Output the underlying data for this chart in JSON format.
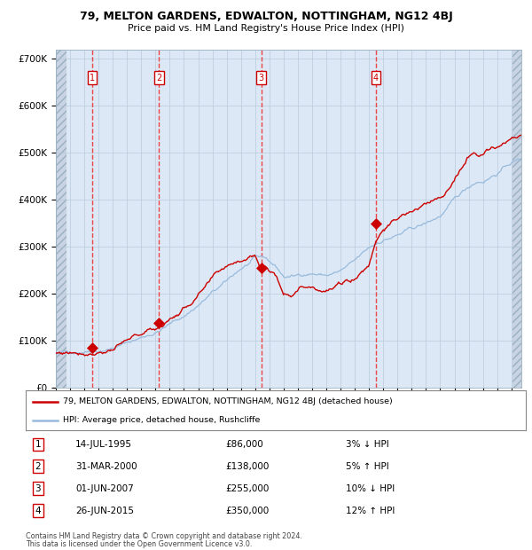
{
  "title1": "79, MELTON GARDENS, EDWALTON, NOTTINGHAM, NG12 4BJ",
  "title2": "Price paid vs. HM Land Registry's House Price Index (HPI)",
  "xlim_start": 1993.0,
  "xlim_end": 2025.7,
  "ylim": [
    0,
    720000
  ],
  "yticks": [
    0,
    100000,
    200000,
    300000,
    400000,
    500000,
    600000,
    700000
  ],
  "ytick_labels": [
    "£0",
    "£100K",
    "£200K",
    "£300K",
    "£400K",
    "£500K",
    "£600K",
    "£700K"
  ],
  "sales": [
    {
      "label": "1",
      "date_label": "14-JUL-1995",
      "year": 1995.54,
      "price": 86000,
      "hpi_pct": "3%",
      "hpi_dir": "↓"
    },
    {
      "label": "2",
      "date_label": "31-MAR-2000",
      "year": 2000.25,
      "price": 138000,
      "hpi_pct": "5%",
      "hpi_dir": "↑"
    },
    {
      "label": "3",
      "date_label": "01-JUN-2007",
      "year": 2007.42,
      "price": 255000,
      "hpi_pct": "10%",
      "hpi_dir": "↓"
    },
    {
      "label": "4",
      "date_label": "26-JUN-2015",
      "year": 2015.49,
      "price": 350000,
      "hpi_pct": "12%",
      "hpi_dir": "↑"
    }
  ],
  "legend_line1": "79, MELTON GARDENS, EDWALTON, NOTTINGHAM, NG12 4BJ (detached house)",
  "legend_line2": "HPI: Average price, detached house, Rushcliffe",
  "footer1": "Contains HM Land Registry data © Crown copyright and database right 2024.",
  "footer2": "This data is licensed under the Open Government Licence v3.0.",
  "bg_hatch_color": "#c8d4e4",
  "bg_main_color": "#dce8f5",
  "line_red": "#cc0000",
  "line_blue": "#99bbdd",
  "dashed_color": "#ee3333",
  "sale_marker_color": "#cc0000",
  "grid_color": "#b0c4d8",
  "hpi_anchors_x": [
    1993,
    1994,
    1995,
    1996,
    1997,
    1998,
    1999,
    2000,
    2001,
    2002,
    2003,
    2004,
    2005,
    2006,
    2007,
    2007.7,
    2008.5,
    2009,
    2009.8,
    2010.5,
    2011,
    2012,
    2013,
    2014,
    2015,
    2016,
    2017,
    2018,
    2019,
    2020,
    2021,
    2022,
    2022.5,
    2023,
    2024,
    2025,
    2025.5
  ],
  "hpi_anchors_v": [
    72000,
    75000,
    82000,
    89000,
    97000,
    107000,
    118000,
    131000,
    148000,
    165000,
    190000,
    215000,
    235000,
    262000,
    280000,
    278000,
    258000,
    238000,
    238000,
    245000,
    248000,
    244000,
    252000,
    268000,
    292000,
    312000,
    322000,
    332000,
    342000,
    358000,
    388000,
    415000,
    428000,
    432000,
    452000,
    475000,
    480000
  ],
  "prop_anchors_x": [
    1993,
    1994,
    1995.0,
    1995.54,
    1996,
    1997,
    1998,
    1999,
    2000.0,
    2000.25,
    2001,
    2002,
    2003,
    2004,
    2005,
    2006,
    2007.0,
    2007.42,
    2007.7,
    2008.0,
    2008.5,
    2009,
    2009.5,
    2010,
    2011,
    2012,
    2013,
    2014,
    2015.0,
    2015.49,
    2016,
    2017,
    2018,
    2019,
    2020,
    2021,
    2022,
    2023,
    2024,
    2025,
    2025.5
  ],
  "prop_anchors_v": [
    73000,
    77000,
    83000,
    86000,
    91000,
    100000,
    110000,
    122000,
    133000,
    138000,
    155000,
    178000,
    207000,
    232000,
    255000,
    275000,
    290000,
    255000,
    272000,
    260000,
    245000,
    215000,
    218000,
    232000,
    242000,
    238000,
    248000,
    263000,
    295000,
    350000,
    378000,
    395000,
    408000,
    420000,
    435000,
    468000,
    515000,
    530000,
    545000,
    558000,
    560000
  ],
  "noise_scale_hpi": 1200,
  "noise_scale_prop": 1500,
  "n_points": 500
}
